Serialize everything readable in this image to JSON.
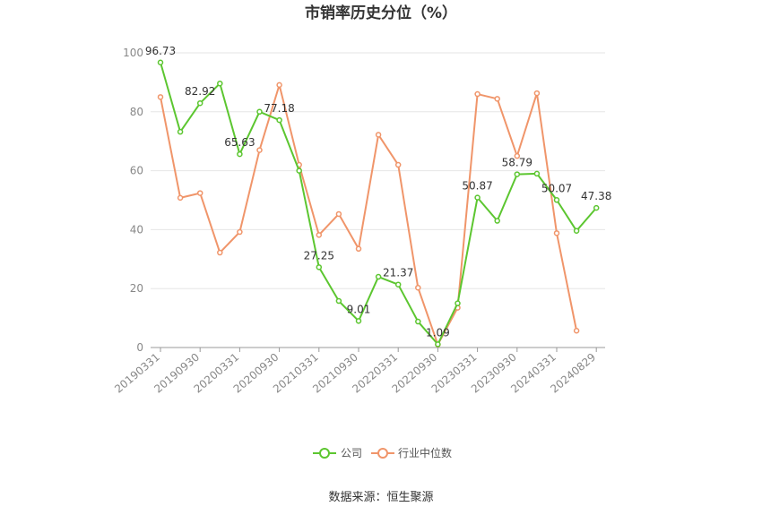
{
  "chart_data": {
    "type": "line",
    "title": "市销率历史分位（%）",
    "ylim": [
      0,
      100
    ],
    "yticks": [
      0,
      20,
      40,
      60,
      80,
      100
    ],
    "x_tick_labels": [
      "20190331",
      "20190930",
      "20200331",
      "20200930",
      "20210331",
      "20210930",
      "20220331",
      "20220930",
      "20230331",
      "20230930",
      "20240331",
      "20240829"
    ],
    "x": [
      "20190331",
      "20190630",
      "20190930",
      "20191231",
      "20200331",
      "20200630",
      "20200930",
      "20201231",
      "20210331",
      "20210630",
      "20210930",
      "20211231",
      "20220331",
      "20220630",
      "20220930",
      "20221231",
      "20230331",
      "20230630",
      "20230930",
      "20231231",
      "20240331",
      "20240630",
      "20240829"
    ],
    "series": [
      {
        "name": "公司",
        "color": "#5cc630",
        "values": [
          96.73,
          73.2,
          82.92,
          89.6,
          65.63,
          80.0,
          77.18,
          60.0,
          27.25,
          15.8,
          9.01,
          24.0,
          21.37,
          8.8,
          1.09,
          15.0,
          50.87,
          43.0,
          58.79,
          59.0,
          50.07,
          39.6,
          47.38
        ],
        "labels": {
          "0": "96.73",
          "2": "82.92",
          "4": "65.63",
          "6": "77.18",
          "8": "27.25",
          "10": "9.01",
          "12": "21.37",
          "14": "1.09",
          "16": "50.87",
          "18": "58.79",
          "20": "50.07",
          "22": "47.38"
        }
      },
      {
        "name": "行业中位数",
        "color": "#f0956a",
        "values": [
          85.0,
          50.8,
          52.4,
          32.2,
          39.2,
          67.0,
          89.1,
          62.0,
          38.2,
          45.3,
          33.5,
          72.2,
          62.0,
          20.3,
          1.0,
          13.5,
          86.0,
          84.4,
          65.0,
          86.3,
          38.8,
          5.7,
          null
        ]
      }
    ],
    "grid": true,
    "legend_position": "bottom-center"
  },
  "footer": {
    "source": "数据来源：恒生聚源"
  }
}
